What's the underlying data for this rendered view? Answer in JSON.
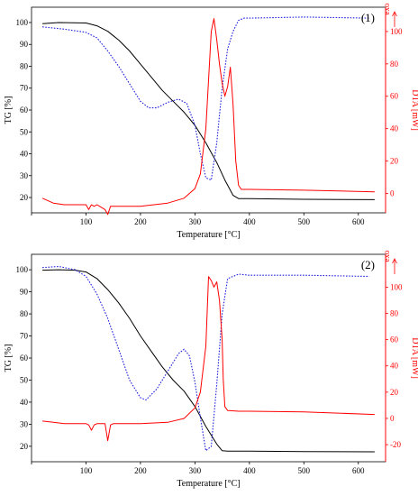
{
  "colors": {
    "tg": "#000000",
    "dta": "#ff0000",
    "dtg": "#2222dd",
    "frame": "#000000"
  },
  "chart_data": [
    {
      "type": "line",
      "panel_label": "(1)",
      "xlabel": "Temperature [°C]",
      "ylabel": "TG [%]",
      "y2label": "DTA [mW]",
      "exo_label": "exo",
      "xlim": [
        0,
        650
      ],
      "ylim": [
        13,
        107
      ],
      "y2lim": [
        -12,
        115
      ],
      "xticks": [
        0,
        100,
        200,
        300,
        400,
        500,
        600
      ],
      "yticks": [
        20,
        30,
        40,
        50,
        60,
        70,
        80,
        90,
        100
      ],
      "y2ticks": [
        0,
        20,
        40,
        60,
        80,
        100
      ],
      "series": [
        {
          "axis": "left",
          "style": "solid",
          "color": "#000000",
          "x": [
            20,
            50,
            100,
            120,
            140,
            160,
            180,
            200,
            220,
            240,
            260,
            280,
            300,
            320,
            340,
            355,
            370,
            380,
            400,
            500,
            630
          ],
          "y": [
            99.5,
            100,
            99.8,
            98.5,
            96,
            92,
            87,
            81,
            75,
            69,
            64,
            59,
            53,
            45,
            36,
            28,
            21,
            19.5,
            19.5,
            19.2,
            19
          ]
        },
        {
          "axis": "left",
          "style": "dotted",
          "color": "#2222dd",
          "x": [
            20,
            60,
            100,
            120,
            140,
            160,
            180,
            200,
            215,
            230,
            250,
            270,
            285,
            300,
            310,
            320,
            330,
            340,
            350,
            360,
            370,
            380,
            390,
            400,
            500,
            620
          ],
          "y": [
            98,
            97,
            95.5,
            93,
            87,
            80,
            72,
            64,
            61,
            61,
            63.5,
            65,
            63,
            53,
            40,
            29,
            28,
            45,
            70,
            88,
            96,
            101,
            102,
            102,
            102.5,
            102
          ]
        },
        {
          "axis": "right",
          "style": "solid",
          "color": "#ff0000",
          "x": [
            20,
            40,
            60,
            80,
            100,
            105,
            110,
            115,
            120,
            125,
            130,
            135,
            140,
            145,
            150,
            200,
            250,
            280,
            300,
            310,
            320,
            330,
            335,
            340,
            345,
            350,
            355,
            360,
            365,
            370,
            375,
            380,
            385,
            400,
            500,
            630
          ],
          "y": [
            -3,
            -6,
            -7,
            -7,
            -7,
            -10,
            -7,
            -8,
            -7,
            -8,
            -9,
            -10,
            -13,
            -8,
            -8,
            -8,
            -6,
            -3,
            3,
            12,
            40,
            100,
            108,
            95,
            80,
            68,
            60,
            66,
            78,
            55,
            20,
            5,
            2.5,
            2.5,
            2,
            1
          ]
        }
      ]
    },
    {
      "type": "line",
      "panel_label": "(2)",
      "xlabel": "Temperature [°C]",
      "ylabel": "TG [%]",
      "y2label": "DTA [mW]",
      "exo_label": "exo",
      "xlim": [
        0,
        650
      ],
      "ylim": [
        13,
        107
      ],
      "y2lim": [
        -33,
        125
      ],
      "xticks": [
        0,
        100,
        200,
        300,
        400,
        500,
        600
      ],
      "yticks": [
        20,
        30,
        40,
        50,
        60,
        70,
        80,
        90,
        100
      ],
      "y2ticks": [
        -20,
        0,
        20,
        40,
        60,
        80,
        100
      ],
      "series": [
        {
          "axis": "left",
          "style": "solid",
          "color": "#000000",
          "x": [
            20,
            50,
            80,
            100,
            120,
            140,
            160,
            180,
            200,
            220,
            240,
            260,
            280,
            300,
            320,
            340,
            350,
            360,
            400,
            500,
            630
          ],
          "y": [
            99.8,
            100,
            99.8,
            99,
            96,
            91,
            85,
            78,
            70,
            63,
            56,
            50,
            45,
            38,
            29,
            21,
            18,
            17.8,
            17.8,
            17.6,
            17.5
          ]
        },
        {
          "axis": "left",
          "style": "dotted",
          "color": "#2222dd",
          "x": [
            20,
            50,
            80,
            100,
            120,
            140,
            160,
            180,
            200,
            210,
            230,
            250,
            270,
            280,
            290,
            300,
            310,
            320,
            330,
            340,
            350,
            360,
            380,
            400,
            500,
            620
          ],
          "y": [
            101,
            101.5,
            100,
            97,
            89,
            78,
            64,
            50,
            42,
            41,
            46,
            54,
            62,
            64,
            61,
            49,
            33,
            18,
            20,
            48,
            80,
            96,
            98,
            97.5,
            97.5,
            97
          ]
        },
        {
          "axis": "right",
          "style": "solid",
          "color": "#ff0000",
          "x": [
            20,
            40,
            60,
            80,
            100,
            105,
            110,
            115,
            120,
            135,
            140,
            145,
            150,
            200,
            250,
            280,
            300,
            310,
            320,
            325,
            330,
            335,
            340,
            345,
            350,
            352,
            355,
            360,
            380,
            400,
            500,
            630
          ],
          "y": [
            -2,
            -3,
            -4,
            -4,
            -4,
            -5,
            -9,
            -5,
            -4,
            -4,
            -17,
            -5,
            -4,
            -4,
            -3,
            0,
            8,
            20,
            55,
            108,
            105,
            100,
            104,
            90,
            60,
            30,
            9,
            6,
            5.5,
            5.5,
            5,
            3
          ]
        }
      ]
    }
  ]
}
